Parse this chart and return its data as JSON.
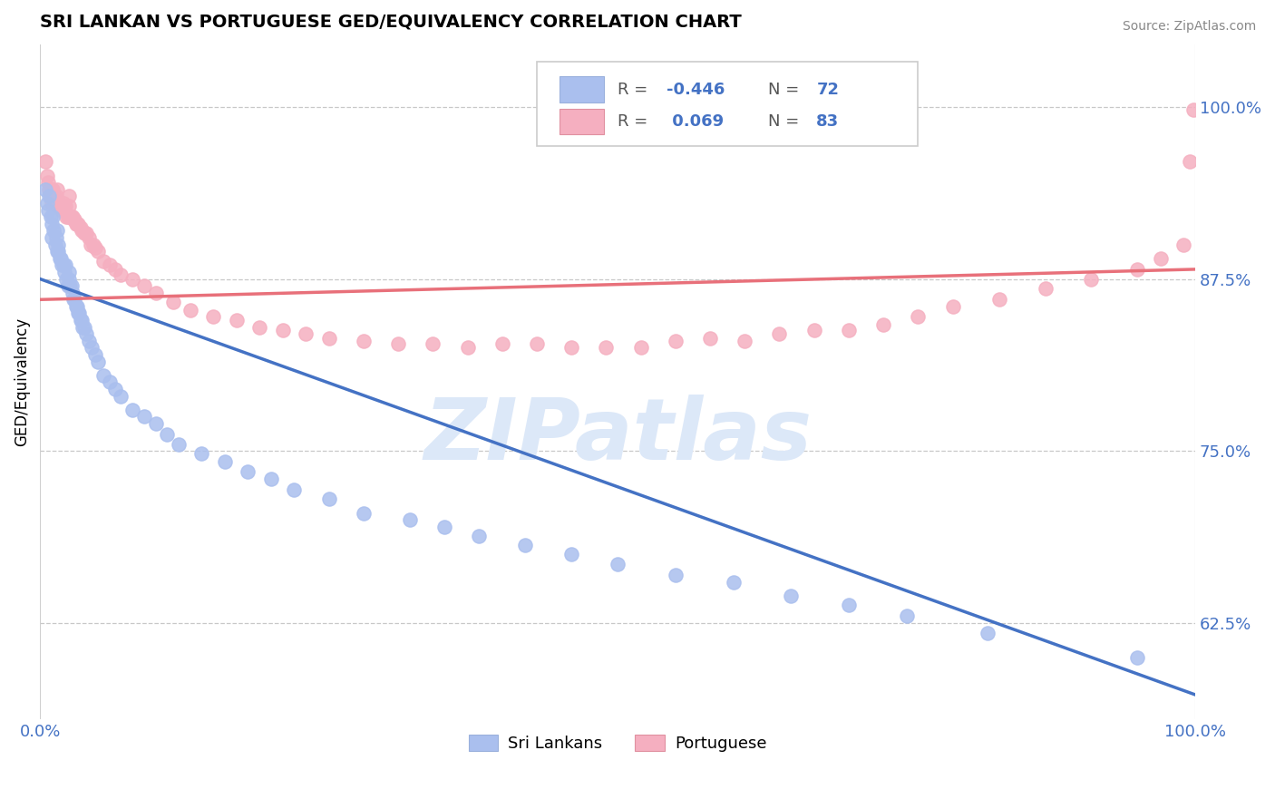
{
  "title": "SRI LANKAN VS PORTUGUESE GED/EQUIVALENCY CORRELATION CHART",
  "source": "Source: ZipAtlas.com",
  "ylabel": "GED/Equivalency",
  "y_ticks": [
    0.625,
    0.75,
    0.875,
    1.0
  ],
  "y_tick_labels": [
    "62.5%",
    "75.0%",
    "87.5%",
    "100.0%"
  ],
  "x_lim": [
    0.0,
    1.0
  ],
  "y_lim": [
    0.555,
    1.045
  ],
  "legend_label1": "Sri Lankans",
  "legend_label2": "Portuguese",
  "sri_lankan_color": "#aabfee",
  "portuguese_color": "#f5afc0",
  "sri_lankan_line_color": "#4472c4",
  "portuguese_line_color": "#e8707a",
  "watermark_color": "#dce8f8",
  "sl_line_x0": 0.0,
  "sl_line_y0": 0.875,
  "sl_line_x1": 1.0,
  "sl_line_y1": 0.573,
  "pt_line_x0": 0.0,
  "pt_line_y0": 0.86,
  "pt_line_x1": 1.0,
  "pt_line_y1": 0.882,
  "sri_lankan_x": [
    0.005,
    0.006,
    0.007,
    0.008,
    0.009,
    0.01,
    0.01,
    0.011,
    0.012,
    0.013,
    0.014,
    0.015,
    0.015,
    0.016,
    0.016,
    0.017,
    0.018,
    0.019,
    0.02,
    0.021,
    0.022,
    0.023,
    0.024,
    0.025,
    0.025,
    0.026,
    0.027,
    0.028,
    0.029,
    0.03,
    0.031,
    0.032,
    0.033,
    0.034,
    0.035,
    0.036,
    0.037,
    0.038,
    0.04,
    0.042,
    0.045,
    0.048,
    0.05,
    0.055,
    0.06,
    0.065,
    0.07,
    0.08,
    0.09,
    0.1,
    0.11,
    0.12,
    0.14,
    0.16,
    0.18,
    0.2,
    0.22,
    0.25,
    0.28,
    0.32,
    0.35,
    0.38,
    0.42,
    0.46,
    0.5,
    0.55,
    0.6,
    0.65,
    0.7,
    0.75,
    0.82,
    0.95
  ],
  "sri_lankan_y": [
    0.94,
    0.93,
    0.925,
    0.935,
    0.92,
    0.915,
    0.905,
    0.92,
    0.91,
    0.9,
    0.905,
    0.91,
    0.895,
    0.895,
    0.9,
    0.89,
    0.89,
    0.885,
    0.885,
    0.88,
    0.885,
    0.875,
    0.87,
    0.875,
    0.88,
    0.87,
    0.87,
    0.865,
    0.86,
    0.86,
    0.855,
    0.855,
    0.85,
    0.85,
    0.845,
    0.845,
    0.84,
    0.84,
    0.835,
    0.83,
    0.825,
    0.82,
    0.815,
    0.805,
    0.8,
    0.795,
    0.79,
    0.78,
    0.775,
    0.77,
    0.762,
    0.755,
    0.748,
    0.742,
    0.735,
    0.73,
    0.722,
    0.715,
    0.705,
    0.7,
    0.695,
    0.688,
    0.682,
    0.675,
    0.668,
    0.66,
    0.655,
    0.645,
    0.638,
    0.63,
    0.618,
    0.6
  ],
  "portuguese_x": [
    0.005,
    0.006,
    0.007,
    0.008,
    0.009,
    0.01,
    0.01,
    0.011,
    0.012,
    0.013,
    0.014,
    0.015,
    0.015,
    0.016,
    0.016,
    0.017,
    0.018,
    0.019,
    0.02,
    0.021,
    0.022,
    0.023,
    0.024,
    0.025,
    0.025,
    0.026,
    0.027,
    0.028,
    0.029,
    0.03,
    0.031,
    0.032,
    0.033,
    0.035,
    0.036,
    0.038,
    0.04,
    0.042,
    0.044,
    0.046,
    0.048,
    0.05,
    0.055,
    0.06,
    0.065,
    0.07,
    0.08,
    0.09,
    0.1,
    0.115,
    0.13,
    0.15,
    0.17,
    0.19,
    0.21,
    0.23,
    0.25,
    0.28,
    0.31,
    0.34,
    0.37,
    0.4,
    0.43,
    0.46,
    0.49,
    0.52,
    0.55,
    0.58,
    0.61,
    0.64,
    0.67,
    0.7,
    0.73,
    0.76,
    0.79,
    0.83,
    0.87,
    0.91,
    0.95,
    0.97,
    0.99,
    0.995,
    0.998
  ],
  "portuguese_y": [
    0.96,
    0.95,
    0.945,
    0.94,
    0.935,
    0.94,
    0.93,
    0.94,
    0.935,
    0.93,
    0.935,
    0.94,
    0.928,
    0.932,
    0.928,
    0.928,
    0.928,
    0.925,
    0.93,
    0.925,
    0.928,
    0.92,
    0.92,
    0.928,
    0.935,
    0.92,
    0.92,
    0.92,
    0.918,
    0.918,
    0.915,
    0.915,
    0.915,
    0.912,
    0.91,
    0.908,
    0.908,
    0.905,
    0.9,
    0.9,
    0.898,
    0.895,
    0.888,
    0.885,
    0.882,
    0.878,
    0.875,
    0.87,
    0.865,
    0.858,
    0.852,
    0.848,
    0.845,
    0.84,
    0.838,
    0.835,
    0.832,
    0.83,
    0.828,
    0.828,
    0.825,
    0.828,
    0.828,
    0.825,
    0.825,
    0.825,
    0.83,
    0.832,
    0.83,
    0.835,
    0.838,
    0.838,
    0.842,
    0.848,
    0.855,
    0.86,
    0.868,
    0.875,
    0.882,
    0.89,
    0.9,
    0.96,
    0.998
  ]
}
